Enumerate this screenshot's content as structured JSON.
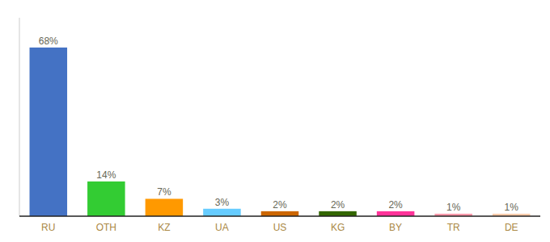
{
  "chart_data": {
    "type": "bar",
    "categories": [
      "RU",
      "OTH",
      "KZ",
      "UA",
      "US",
      "KG",
      "BY",
      "TR",
      "DE"
    ],
    "values": [
      68,
      14,
      7,
      3,
      2,
      2,
      2,
      1,
      1
    ],
    "value_labels": [
      "68%",
      "14%",
      "7%",
      "3%",
      "2%",
      "2%",
      "2%",
      "1%",
      "1%"
    ],
    "colors": [
      "#4472c4",
      "#33cc33",
      "#ff9900",
      "#66ccff",
      "#cc6600",
      "#336600",
      "#ff3399",
      "#ff99aa",
      "#ffccaa"
    ],
    "ylim": [
      0,
      80
    ],
    "data_labels": true,
    "tick_labels": "x",
    "grid": false
  }
}
